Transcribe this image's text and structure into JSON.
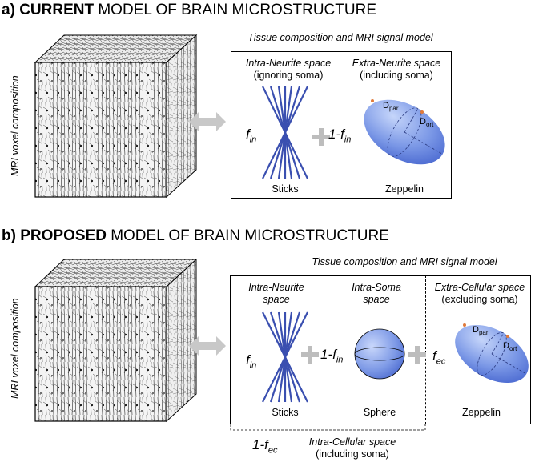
{
  "panel_a": {
    "heading_prefix": "a)",
    "heading_bold": "CURRENT",
    "heading_rest": "MODEL OF BRAIN MICROSTRUCTURE",
    "side_label": "MRI voxel composition",
    "box_title": "Tissue composition and MRI signal model",
    "compartments": [
      {
        "title_italic": "Intra-Neurite space",
        "title_sub": "(ignoring soma)",
        "fraction": "f",
        "fraction_sub": "in",
        "shape": "sticks",
        "name": "Sticks"
      },
      {
        "title_italic": "Extra-Neurite space",
        "title_sub": "(including soma)",
        "fraction": "1-f",
        "fraction_sub": "in",
        "shape": "zeppelin",
        "name": "Zeppelin"
      }
    ],
    "d_par": "D",
    "d_par_sub": "par",
    "d_ort": "D",
    "d_ort_sub": "ort"
  },
  "panel_b": {
    "heading_prefix": "b)",
    "heading_bold": "PROPOSED",
    "heading_rest": "MODEL OF BRAIN MICROSTRUCTURE",
    "side_label": "MRI voxel composition",
    "box_title": "Tissue composition and MRI signal model",
    "compartments": [
      {
        "title_line1": "Intra-Neurite",
        "title_line2": "space",
        "fraction": "f",
        "fraction_sub": "in",
        "shape": "sticks",
        "name": "Sticks"
      },
      {
        "title_line1": "Intra-Soma",
        "title_line2": "space",
        "fraction": "1-f",
        "fraction_sub": "in",
        "shape": "sphere",
        "name": "Sphere"
      },
      {
        "title_italic": "Extra-Cellular space",
        "title_sub": "(excluding soma)",
        "fraction": "f",
        "fraction_sub": "ec",
        "shape": "zeppelin",
        "name": "Zeppelin"
      }
    ],
    "intracellular_fraction": "1-f",
    "intracellular_fraction_sub": "ec",
    "intracellular_title": "Intra-Cellular space",
    "intracellular_sub": "(including soma)",
    "d_par": "D",
    "d_par_sub": "par",
    "d_ort": "D",
    "d_ort_sub": "ort"
  },
  "colors": {
    "stick": "#3a4fb0",
    "zeppelin_light": "#9db6f2",
    "zeppelin_dark": "#4a6fd6",
    "arrow_gray": "#c8c8c8",
    "plus_gray": "#bdbdbd",
    "d_marker": "#e07a3a"
  }
}
